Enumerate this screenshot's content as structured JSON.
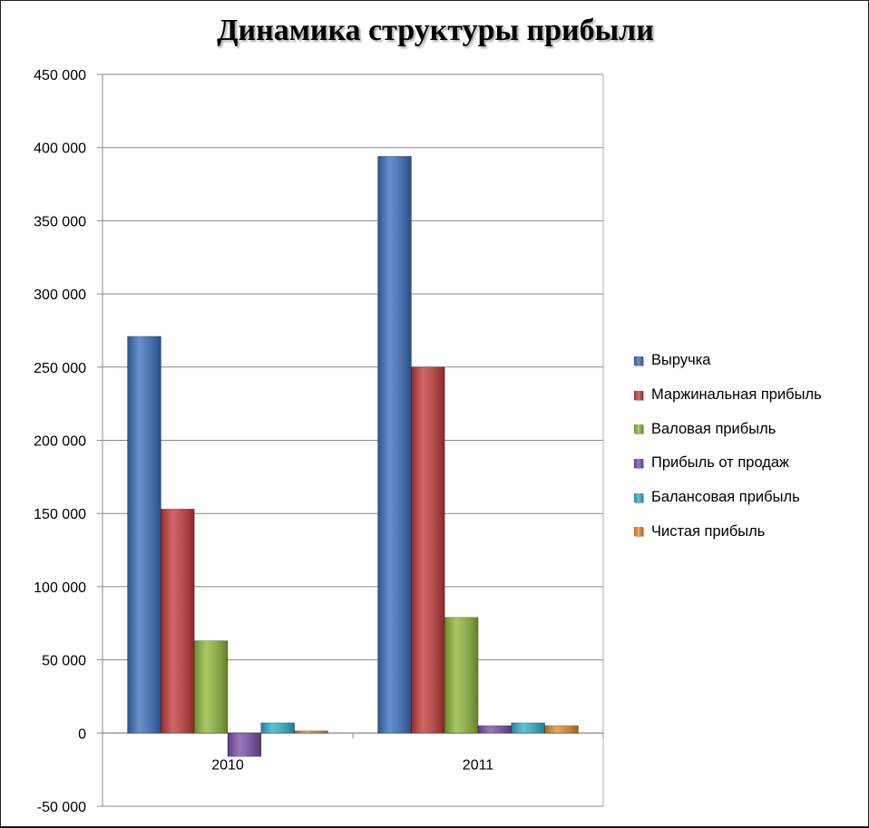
{
  "chart_data": {
    "type": "bar",
    "title": "Динамика структуры прибыли",
    "xlabel": "",
    "ylabel": "",
    "categories": [
      "2010",
      "2011"
    ],
    "ylim": [
      -50000,
      450000
    ],
    "yticks": [
      450000,
      400000,
      350000,
      300000,
      250000,
      200000,
      150000,
      100000,
      50000,
      0,
      -50000
    ],
    "ytick_labels": [
      "450 000",
      "400 000",
      "350 000",
      "300 000",
      "250 000",
      "200 000",
      "150 000",
      "100 000",
      "50 000",
      "0",
      "-50 000"
    ],
    "grid": true,
    "legend_position": "right",
    "series": [
      {
        "name": "Выручка",
        "color": "#3a6fc0",
        "values": [
          271000,
          394000
        ]
      },
      {
        "name": "Маржинальная прибыль",
        "color": "#c43a3a",
        "values": [
          153000,
          250000
        ]
      },
      {
        "name": "Валовая прибыль",
        "color": "#8fb83a",
        "values": [
          63000,
          79000
        ]
      },
      {
        "name": "Прибыль от продаж",
        "color": "#7a4fa8",
        "values": [
          -16000,
          5000
        ]
      },
      {
        "name": "Балансовая прибыль",
        "color": "#2fb0cc",
        "values": [
          7000,
          7000
        ]
      },
      {
        "name": "Чистая прибыль",
        "color": "#e8892a",
        "values": [
          1500,
          5000
        ]
      }
    ]
  }
}
